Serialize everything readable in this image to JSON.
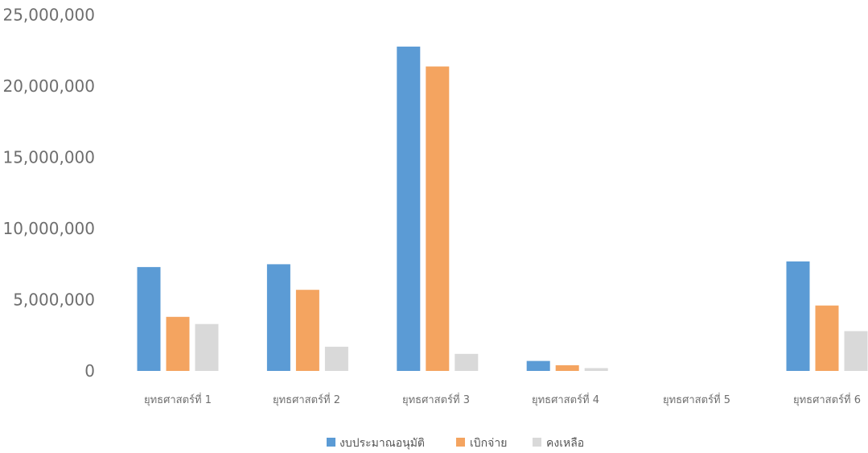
{
  "chart_data": {
    "type": "bar",
    "categories": [
      "ยุทธศาสตร์ที่ 1",
      "ยุทธศาสตร์ที่ 2",
      "ยุทธศาสตร์ที่ 3",
      "ยุทธศาสตร์ที่ 4",
      "ยุทธศาสตร์ที่ 5",
      "ยุทธศาสตร์ที่ 6"
    ],
    "series": [
      {
        "name": "งบประมาณอนุมัติ",
        "color": "#5b9bd5",
        "values": [
          7300000,
          7500000,
          22800000,
          700000,
          0,
          7700000
        ]
      },
      {
        "name": "เบิกจ่าย",
        "color": "#f4a460",
        "values": [
          3800000,
          5700000,
          21400000,
          400000,
          0,
          4600000
        ]
      },
      {
        "name": "คงเหลือ",
        "color": "#d9d9d9",
        "values": [
          3300000,
          1700000,
          1200000,
          200000,
          0,
          2800000
        ]
      }
    ],
    "yticks": [
      "0",
      "5,000,000",
      "10,000,000",
      "15,000,000",
      "20,000,000",
      "25,000,000"
    ],
    "ylim": [
      0,
      25000000
    ],
    "grid": false,
    "legend": "bottom",
    "title": "",
    "xlabel": "",
    "ylabel": ""
  }
}
